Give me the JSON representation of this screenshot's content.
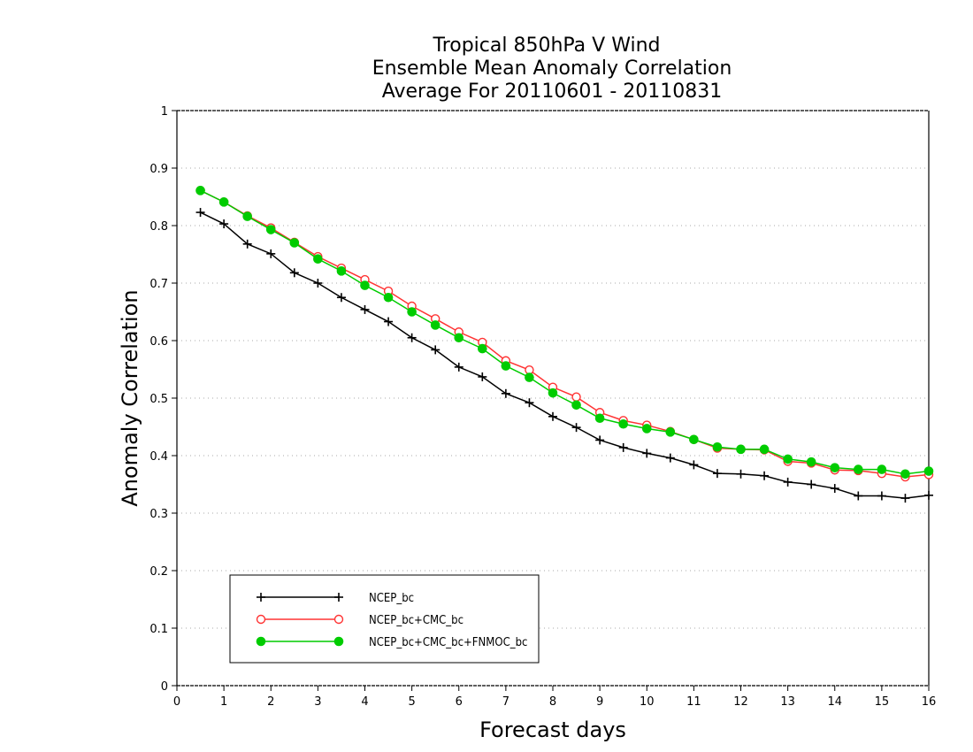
{
  "chart_data": {
    "type": "line",
    "title": [
      "Tropical 850hPa V Wind",
      "Ensemble Mean Anomaly Correlation",
      "Average For 20110601 - 20110831"
    ],
    "xlabel": "Forecast days",
    "ylabel": "Anomaly Correlation",
    "xlim": [
      0,
      16
    ],
    "ylim": [
      0,
      1
    ],
    "xticks": [
      "0",
      "1",
      "2",
      "3",
      "4",
      "5",
      "6",
      "7",
      "8",
      "9",
      "10",
      "11",
      "12",
      "13",
      "14",
      "15",
      "16"
    ],
    "yticks": [
      "0",
      "0.1",
      "0.2",
      "0.3",
      "0.4",
      "0.5",
      "0.6",
      "0.7",
      "0.8",
      "0.9",
      "1"
    ],
    "grid": "horizontal dotted",
    "legend_position": "bottom-left",
    "x": [
      0.5,
      1,
      1.5,
      2,
      2.5,
      3,
      3.5,
      4,
      4.5,
      5,
      5.5,
      6,
      6.5,
      7,
      7.5,
      8,
      8.5,
      9,
      9.5,
      10,
      10.5,
      11,
      11.5,
      12,
      12.5,
      13,
      13.5,
      14,
      14.5,
      15,
      15.5,
      16
    ],
    "series": [
      {
        "name": "NCEP_bc",
        "color": "#000000",
        "marker": "plus",
        "values": [
          0.823,
          0.803,
          0.768,
          0.751,
          0.718,
          0.7,
          0.675,
          0.654,
          0.633,
          0.605,
          0.584,
          0.554,
          0.537,
          0.508,
          0.492,
          0.468,
          0.449,
          0.427,
          0.414,
          0.404,
          0.396,
          0.384,
          0.369,
          0.368,
          0.365,
          0.354,
          0.35,
          0.343,
          0.33,
          0.33,
          0.326,
          0.331
        ]
      },
      {
        "name": "NCEP_bc+CMC_bc",
        "color": "#ff3333",
        "marker": "open-circle",
        "values": [
          0.861,
          0.841,
          0.817,
          0.796,
          0.771,
          0.746,
          0.726,
          0.706,
          0.686,
          0.66,
          0.638,
          0.615,
          0.597,
          0.565,
          0.549,
          0.519,
          0.502,
          0.475,
          0.461,
          0.453,
          0.442,
          0.428,
          0.413,
          0.411,
          0.41,
          0.39,
          0.387,
          0.375,
          0.374,
          0.369,
          0.363,
          0.367
        ]
      },
      {
        "name": "NCEP_bc+CMC_bc+FNMOC_bc",
        "color": "#00cc00",
        "marker": "filled-circle",
        "values": [
          0.861,
          0.841,
          0.816,
          0.793,
          0.77,
          0.742,
          0.721,
          0.696,
          0.675,
          0.65,
          0.627,
          0.605,
          0.586,
          0.556,
          0.536,
          0.509,
          0.488,
          0.465,
          0.455,
          0.447,
          0.441,
          0.428,
          0.415,
          0.411,
          0.411,
          0.394,
          0.389,
          0.379,
          0.376,
          0.376,
          0.368,
          0.373
        ]
      }
    ]
  }
}
